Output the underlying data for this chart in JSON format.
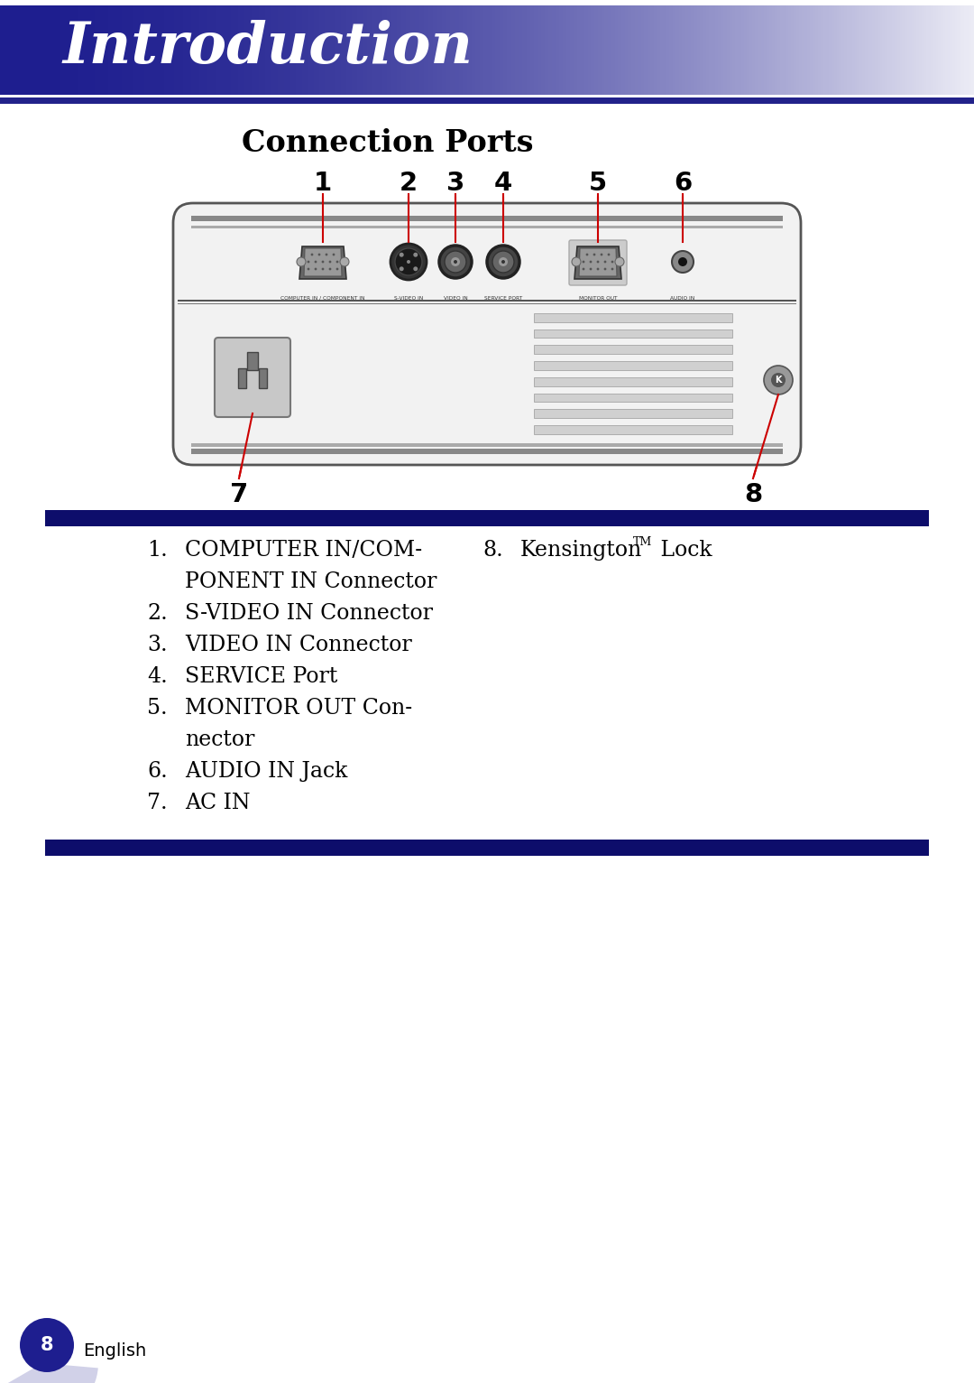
{
  "title_text": "Introduction",
  "section_title": "Connection Ports",
  "header_bg_color": "#1e1e8f",
  "page_bg_color": "#ffffff",
  "divider_color": "#0d0d6b",
  "port_numbers": [
    "1",
    "2",
    "3",
    "4",
    "5",
    "6"
  ],
  "number7": "7",
  "number8": "8",
  "page_number": "8",
  "page_label": "English",
  "left_items": [
    [
      "1.",
      "COMPUTER IN/COM-"
    ],
    [
      "",
      "PONENT IN Connector"
    ],
    [
      "2.",
      "S-VIDEO IN Connector"
    ],
    [
      "3.",
      "VIDEO IN Connector"
    ],
    [
      "4.",
      "SERVICE Port"
    ],
    [
      "5.",
      "MONITOR OUT Con-"
    ],
    [
      "",
      "nector"
    ],
    [
      "6.",
      "AUDIO IN Jack"
    ],
    [
      "7.",
      "AC IN"
    ]
  ],
  "right_items": [
    [
      "8.",
      "Kensington",
      "TM",
      " Lock"
    ]
  ]
}
